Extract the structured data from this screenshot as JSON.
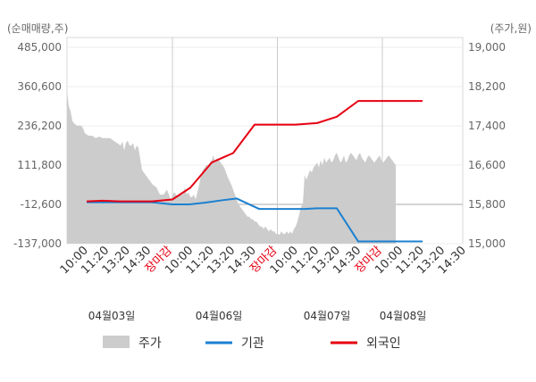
{
  "chart_data": {
    "type": "line",
    "left_axis": {
      "unit_label": "(순매매량,주)",
      "ticks": [
        "485,000",
        "360,600",
        "236,200",
        "111,800",
        "-12,600",
        "-137,000"
      ],
      "ylim": [
        -137000,
        485000
      ]
    },
    "right_axis": {
      "unit_label": "(주가,원)",
      "ticks": [
        "19,000",
        "18,200",
        "17,400",
        "16,600",
        "15,800",
        "15,000"
      ],
      "ylim": [
        15000,
        19000
      ]
    },
    "x_tick_labels": [
      "10:00",
      "11:20",
      "13:20",
      "14:30",
      "장마감",
      "10:00",
      "11:20",
      "13:20",
      "14:30",
      "장마감",
      "10:00",
      "11:20",
      "13:20",
      "14:30",
      "장마감",
      "10:00",
      "11:20",
      "13:20",
      "14:30"
    ],
    "dates": [
      "04월03일",
      "04월06일",
      "04월07일",
      "04월08일"
    ],
    "series": [
      {
        "name": "주가",
        "kind": "area",
        "color": "#cccccc",
        "x": [
          0,
          2,
          4,
          6,
          8,
          10,
          12,
          14,
          16,
          18,
          20,
          24,
          28,
          32,
          36,
          40,
          44,
          48,
          52,
          56,
          60,
          62,
          64,
          66,
          68,
          70,
          72,
          74,
          76,
          78,
          80,
          84,
          88,
          92,
          96,
          100,
          104,
          108,
          112,
          116,
          120,
          124,
          128,
          130,
          132,
          134,
          136,
          138,
          140,
          142,
          144,
          146,
          148,
          150,
          152,
          154,
          156,
          158,
          160,
          162,
          164,
          166,
          168,
          170,
          172,
          176,
          180,
          184,
          188,
          190,
          192,
          194,
          196,
          198,
          200,
          202,
          204,
          206,
          208,
          210,
          212,
          214,
          216,
          218,
          220,
          222,
          224,
          226,
          228,
          230,
          232,
          234,
          236,
          238,
          240,
          242,
          244,
          246,
          248,
          250,
          252,
          254,
          256,
          258,
          260,
          262,
          264,
          266,
          268,
          270,
          272,
          274,
          276,
          278,
          280,
          282,
          284,
          286,
          288,
          290,
          292,
          294,
          296,
          298,
          300,
          302,
          304,
          306,
          308,
          310,
          312,
          314,
          316,
          318,
          320,
          322,
          324,
          326,
          328,
          330,
          332,
          334,
          336,
          338,
          340,
          342,
          344,
          346,
          348,
          350,
          352,
          354,
          356,
          358,
          360,
          362,
          364,
          366,
          368
        ],
        "values": [
          18100,
          17800,
          17700,
          17500,
          17450,
          17420,
          17400,
          17410,
          17400,
          17350,
          17250,
          17200,
          17200,
          17150,
          17180,
          17150,
          17150,
          17150,
          17100,
          17050,
          17000,
          17080,
          16900,
          17050,
          17100,
          17000,
          17000,
          17050,
          16900,
          17000,
          16950,
          16500,
          16400,
          16300,
          16200,
          16150,
          16000,
          16000,
          16100,
          15900,
          16050,
          15950,
          16000,
          16000,
          16150,
          16000,
          16050,
          15950,
          15950,
          16000,
          15900,
          16050,
          16200,
          16400,
          16500,
          16550,
          16600,
          16600,
          16650,
          16700,
          16800,
          16650,
          16750,
          16700,
          16650,
          16550,
          16350,
          16200,
          16000,
          15900,
          15800,
          15750,
          15700,
          15650,
          15600,
          15550,
          15550,
          15500,
          15500,
          15450,
          15450,
          15400,
          15350,
          15350,
          15300,
          15350,
          15300,
          15250,
          15300,
          15250,
          15250,
          15200,
          15200,
          15180,
          15250,
          15200,
          15200,
          15250,
          15200,
          15250,
          15200,
          15300,
          15350,
          15450,
          15600,
          15750,
          15800,
          16400,
          16300,
          16400,
          16500,
          16450,
          16550,
          16600,
          16650,
          16550,
          16700,
          16600,
          16750,
          16650,
          16700,
          16750,
          16650,
          16700,
          16800,
          16850,
          16750,
          16650,
          16700,
          16800,
          16650,
          16700,
          16800,
          16850,
          16800,
          16750,
          16700,
          16800,
          16850,
          16750,
          16700,
          16650,
          16750,
          16800,
          16750,
          16700,
          16650,
          16700,
          16750,
          16800,
          16700,
          16650,
          16700,
          16750,
          16800,
          16750,
          16700,
          16650,
          16600
        ]
      },
      {
        "name": "기관",
        "kind": "line",
        "color": "#1b80d0",
        "x": [
          22,
          40,
          60,
          80,
          95,
          118,
          137,
          155,
          175,
          190,
          215,
          240,
          266,
          280,
          302,
          326,
          346,
          372,
          398
        ],
        "values": [
          -6000,
          -6000,
          -6000,
          -6000,
          -6000,
          -12500,
          -12500,
          -7000,
          1000,
          6000,
          -27000,
          -27000,
          -27000,
          -25000,
          -25000,
          -130000,
          -130000,
          -130000,
          -130000
        ]
      },
      {
        "name": "외국인",
        "kind": "line",
        "color": "#e60012",
        "x": [
          22,
          40,
          60,
          80,
          95,
          118,
          138,
          162,
          186,
          210,
          230,
          256,
          280,
          302,
          326,
          346,
          372,
          398
        ],
        "values": [
          -3000,
          -1000,
          -3000,
          -3000,
          -3000,
          3000,
          40000,
          120000,
          150000,
          240000,
          240000,
          240000,
          245000,
          265000,
          315000,
          315000,
          315000,
          315000
        ]
      }
    ]
  },
  "legend": {
    "items": [
      {
        "label": "주가",
        "color": "#cccccc"
      },
      {
        "label": "기관",
        "color": "#1b80d0"
      },
      {
        "label": "외국인",
        "color": "#e60012"
      }
    ]
  }
}
